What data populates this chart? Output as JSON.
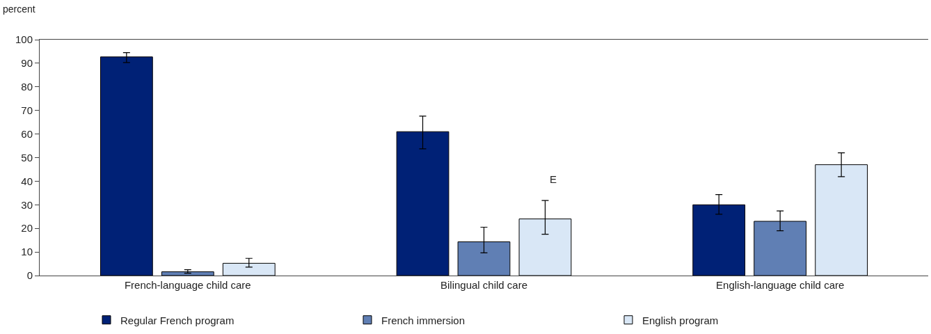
{
  "chart_data": {
    "type": "bar",
    "ylabel": "percent",
    "categories": [
      "French-language child care",
      "Bilingual child care",
      "English-language child care"
    ],
    "series": [
      {
        "name": "Regular French program",
        "color": "#002176",
        "values": [
          92.7,
          61.0,
          30.0
        ],
        "errors": [
          [
            90.3,
            94.5
          ],
          [
            53.7,
            67.6
          ],
          [
            26.0,
            34.3
          ]
        ]
      },
      {
        "name": "French immersion",
        "color": "#607fb4",
        "values": [
          1.6,
          14.3,
          23.0
        ],
        "errors": [
          [
            1.0,
            2.5
          ],
          [
            9.6,
            20.5
          ],
          [
            19.0,
            27.4
          ]
        ]
      },
      {
        "name": "English program",
        "color": "#d9e7f6",
        "values": [
          5.2,
          24.0,
          47.0
        ],
        "errors": [
          [
            3.6,
            7.3
          ],
          [
            17.5,
            31.8
          ],
          [
            41.9,
            52.0
          ]
        ]
      }
    ],
    "annotations": [
      "E"
    ],
    "ylim": [
      0,
      100
    ],
    "yticks": [
      0,
      10,
      20,
      30,
      40,
      50,
      60,
      70,
      80,
      90,
      100
    ],
    "grid": false,
    "legend": "bottom"
  }
}
